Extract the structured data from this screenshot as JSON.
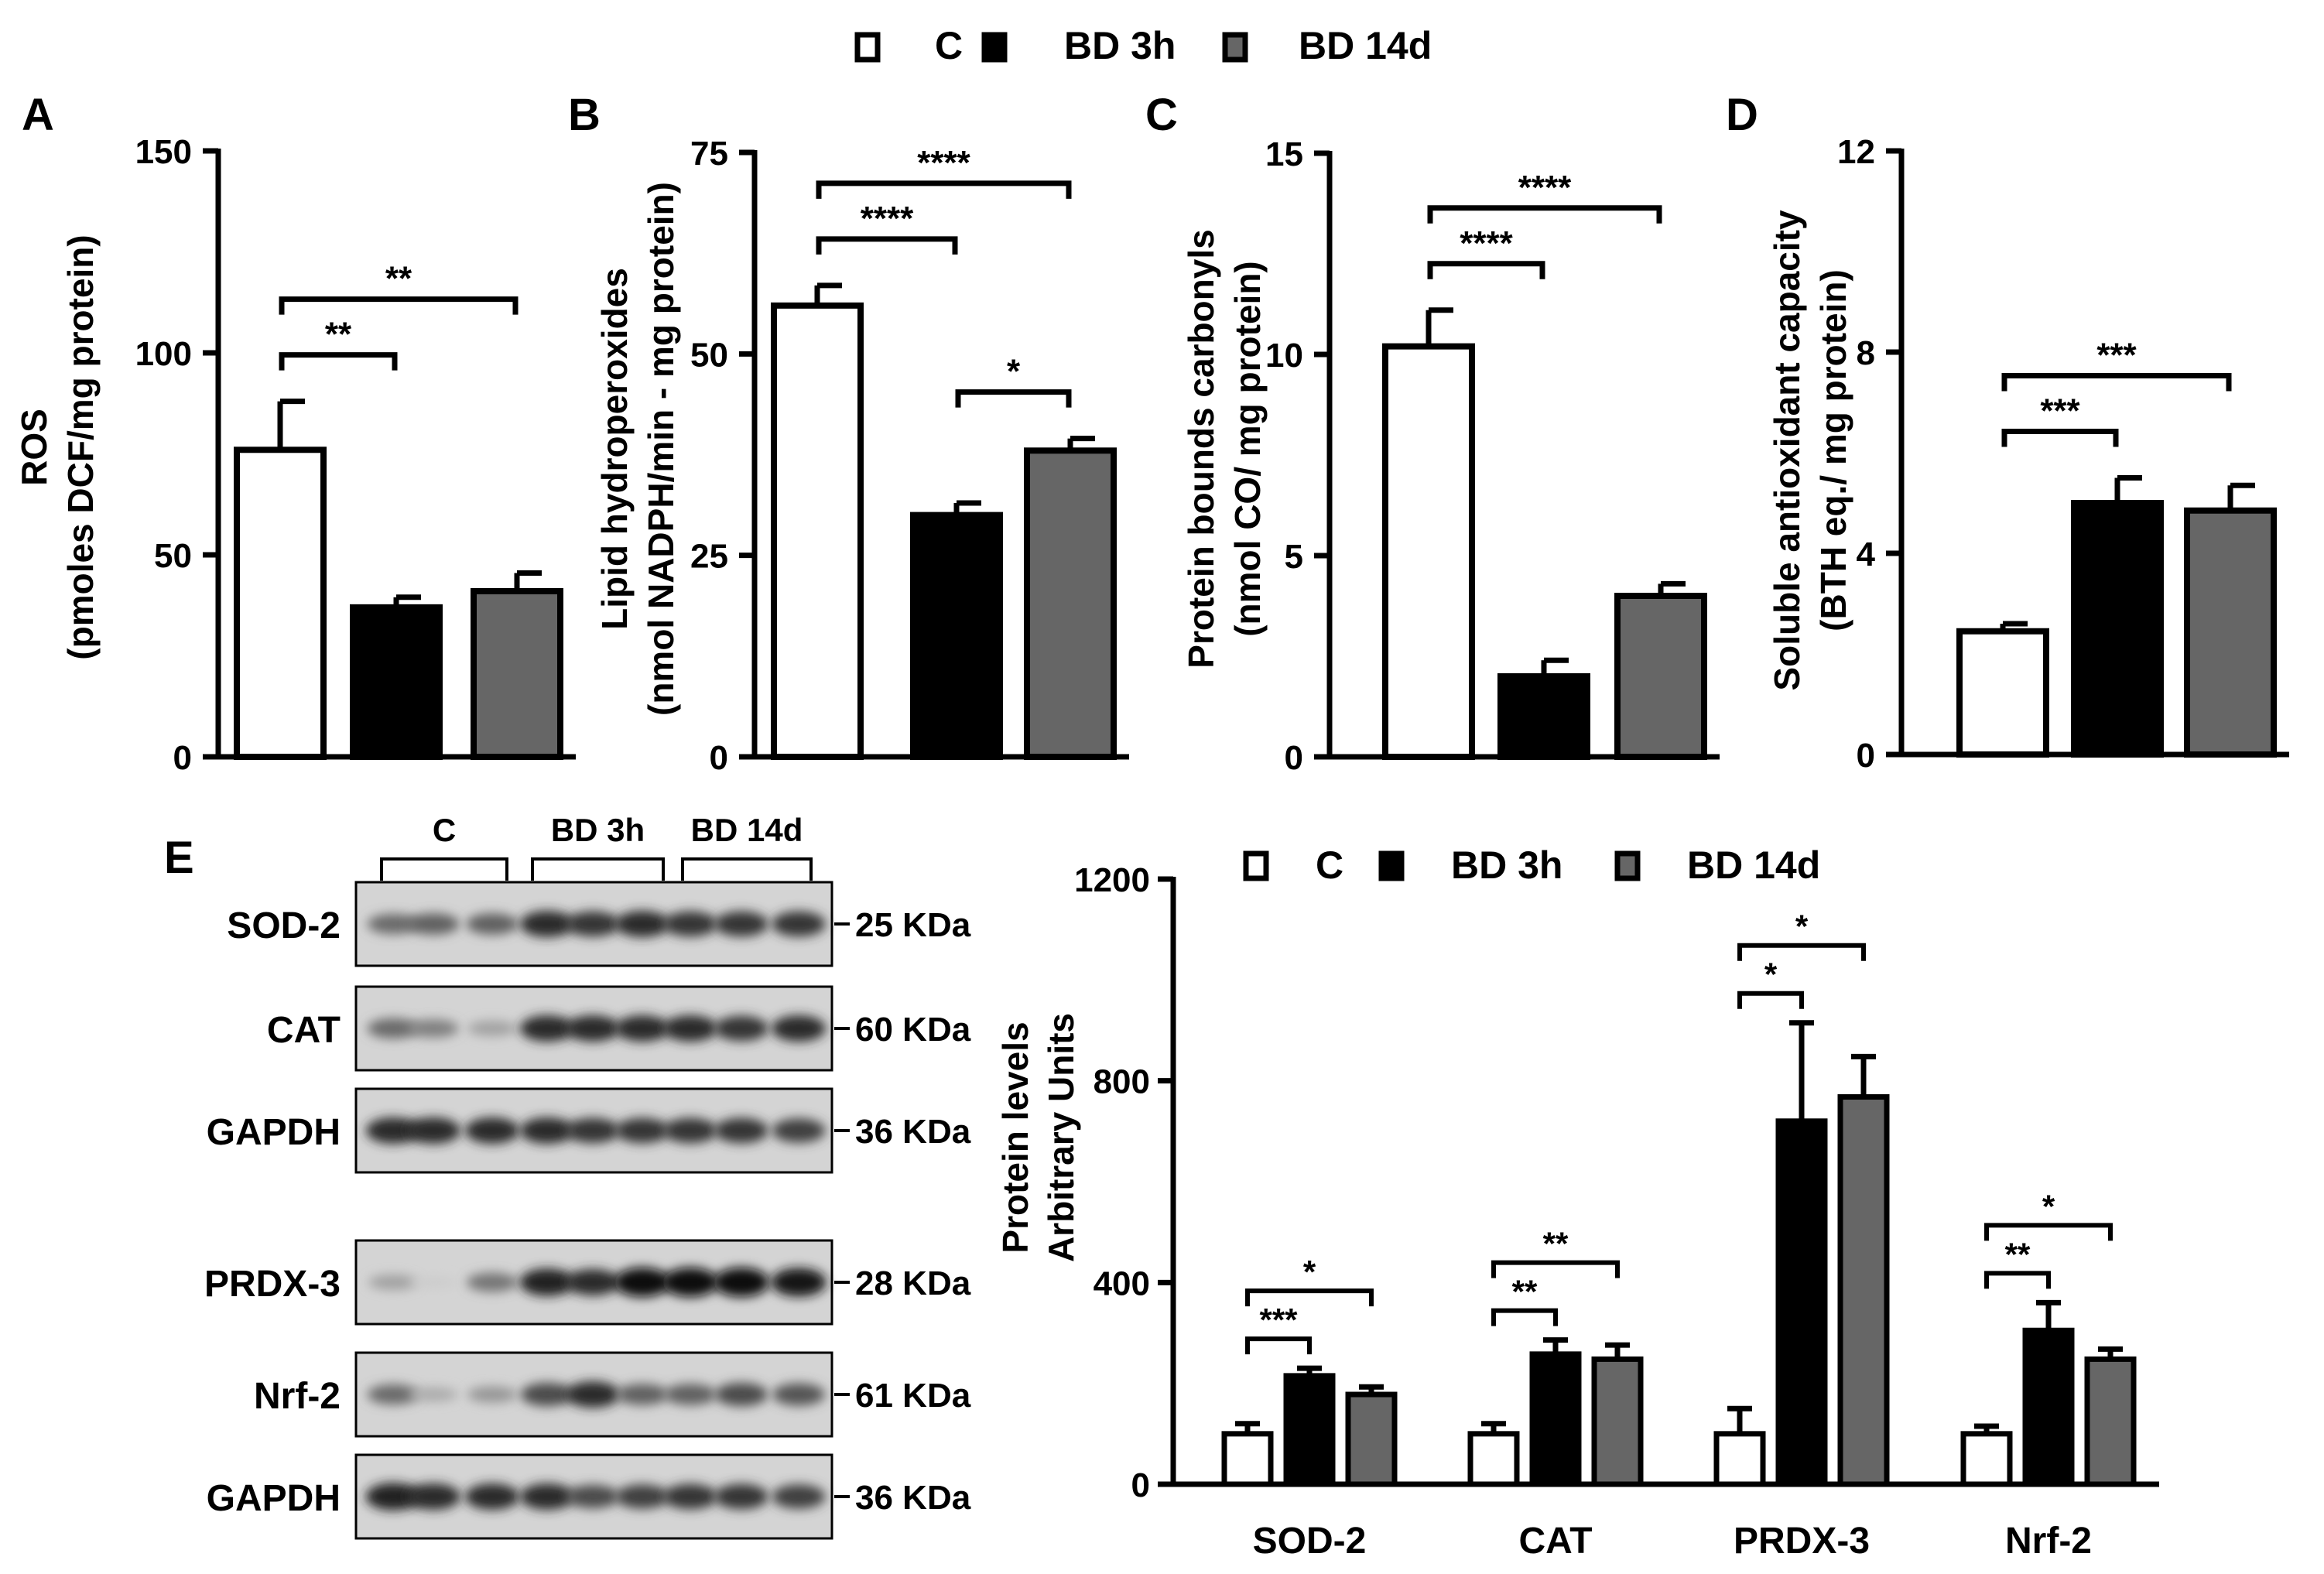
{
  "colors": {
    "C": "#ffffff",
    "BD 3h": "#000000",
    "BD 14d": "#666666",
    "axis": "#000000"
  },
  "legend": {
    "items": [
      {
        "label": "C",
        "color": "#ffffff"
      },
      {
        "label": "BD 3h",
        "color": "#000000"
      },
      {
        "label": "BD 14d",
        "color": "#666666"
      }
    ]
  },
  "chart_data": [
    {
      "type": "bar",
      "panel": "A",
      "categories": [
        "C",
        "BD 3h",
        "BD 14d"
      ],
      "values": [
        76,
        37,
        41
      ],
      "errors": [
        12,
        2.5,
        4.5
      ],
      "ylabel_lines": [
        "ROS",
        "(pmoles DCF/mg protein)"
      ],
      "ylim": [
        0,
        150
      ],
      "yticks": [
        "0",
        "50",
        "100",
        "150"
      ],
      "significance": [
        {
          "from": 0,
          "to": 1,
          "label": "**"
        },
        {
          "from": 0,
          "to": 2,
          "label": "**"
        }
      ]
    },
    {
      "type": "bar",
      "panel": "B",
      "categories": [
        "C",
        "BD 3h",
        "BD 14d"
      ],
      "values": [
        56,
        30,
        38
      ],
      "errors": [
        2.5,
        1.5,
        1.5
      ],
      "ylabel_lines": [
        "Lipid hydroperoxides",
        "(nmol NADPH/min - mg protein)"
      ],
      "ylim": [
        0,
        75
      ],
      "yticks": [
        "0",
        "25",
        "50",
        "75"
      ],
      "significance": [
        {
          "from": 0,
          "to": 1,
          "label": "****"
        },
        {
          "from": 1,
          "to": 2,
          "label": "*"
        },
        {
          "from": 0,
          "to": 2,
          "label": "****"
        }
      ]
    },
    {
      "type": "bar",
      "panel": "C",
      "categories": [
        "C",
        "BD 3h",
        "BD 14d"
      ],
      "values": [
        10.2,
        2.0,
        4.0
      ],
      "errors": [
        0.9,
        0.4,
        0.3
      ],
      "ylabel_lines": [
        "Protein bounds carbonyls",
        "(nmol CO/ mg protein)"
      ],
      "ylim": [
        0,
        15
      ],
      "yticks": [
        "0",
        "5",
        "10",
        "15"
      ],
      "significance": [
        {
          "from": 0,
          "to": 1,
          "label": "****"
        },
        {
          "from": 0,
          "to": 2,
          "label": "****"
        }
      ]
    },
    {
      "type": "bar",
      "panel": "D",
      "categories": [
        "C",
        "BD 3h",
        "BD 14d"
      ],
      "values": [
        2.45,
        5.0,
        4.85
      ],
      "errors": [
        0.15,
        0.5,
        0.5
      ],
      "ylabel_lines": [
        "Soluble antioxidant capacity",
        "(BTH eq./ mg protein)"
      ],
      "ylim": [
        0,
        12
      ],
      "yticks": [
        "0",
        "4",
        "8",
        "12"
      ],
      "significance": [
        {
          "from": 0,
          "to": 1,
          "label": "***"
        },
        {
          "from": 0,
          "to": 2,
          "label": "***"
        }
      ]
    },
    {
      "type": "bar",
      "panel": "E",
      "categories": [
        "SOD-2",
        "CAT",
        "PRDX-3",
        "Nrf-2"
      ],
      "series": [
        {
          "name": "C",
          "values": [
            100,
            100,
            100,
            100
          ],
          "errors": [
            20,
            20,
            50,
            15
          ]
        },
        {
          "name": "BD 3h",
          "values": [
            215,
            258,
            720,
            305
          ],
          "errors": [
            15,
            28,
            195,
            55
          ]
        },
        {
          "name": "BD 14d",
          "values": [
            178,
            248,
            768,
            248
          ],
          "errors": [
            15,
            28,
            80,
            20
          ]
        }
      ],
      "ylabel_lines": [
        "Protein levels",
        "Arbitrary Units"
      ],
      "ylim": [
        0,
        1200
      ],
      "yticks": [
        "0",
        "400",
        "800",
        "1200"
      ],
      "significance": [
        {
          "group": 0,
          "from": 0,
          "to": 1,
          "label": "***"
        },
        {
          "group": 0,
          "from": 0,
          "to": 2,
          "label": "*"
        },
        {
          "group": 1,
          "from": 0,
          "to": 1,
          "label": "**"
        },
        {
          "group": 1,
          "from": 0,
          "to": 2,
          "label": "**"
        },
        {
          "group": 2,
          "from": 0,
          "to": 1,
          "label": "*"
        },
        {
          "group": 2,
          "from": 0,
          "to": 2,
          "label": "*"
        },
        {
          "group": 3,
          "from": 0,
          "to": 1,
          "label": "**"
        },
        {
          "group": 3,
          "from": 0,
          "to": 2,
          "label": "*"
        }
      ]
    }
  ],
  "western_blot": {
    "panel_letter": "E",
    "group_labels": [
      "C",
      "BD 3h",
      "BD 14d"
    ],
    "rows": [
      {
        "protein": "SOD-2",
        "kda": "25 KDa",
        "intensities": [
          0.55,
          0.6,
          0.6,
          0.85,
          0.8,
          0.85,
          0.8,
          0.8,
          0.8
        ]
      },
      {
        "protein": "CAT",
        "kda": "60 KDa",
        "intensities": [
          0.55,
          0.45,
          0.3,
          0.85,
          0.85,
          0.85,
          0.85,
          0.8,
          0.85
        ]
      },
      {
        "protein": "GAPDH",
        "kda": "36 KDa",
        "intensities": [
          0.85,
          0.85,
          0.85,
          0.85,
          0.8,
          0.8,
          0.8,
          0.8,
          0.75
        ]
      },
      {
        "protein": "PRDX-3",
        "kda": "28 KDa",
        "intensities": [
          0.3,
          0.1,
          0.5,
          0.9,
          0.85,
          1.0,
          1.0,
          1.0,
          0.95
        ]
      },
      {
        "protein": "Nrf-2",
        "kda": "61 KDa",
        "intensities": [
          0.55,
          0.25,
          0.35,
          0.7,
          0.85,
          0.6,
          0.6,
          0.7,
          0.65
        ]
      },
      {
        "protein": "GAPDH",
        "kda": "36 KDa",
        "intensities": [
          0.9,
          0.85,
          0.85,
          0.85,
          0.7,
          0.75,
          0.8,
          0.8,
          0.75
        ]
      }
    ]
  }
}
